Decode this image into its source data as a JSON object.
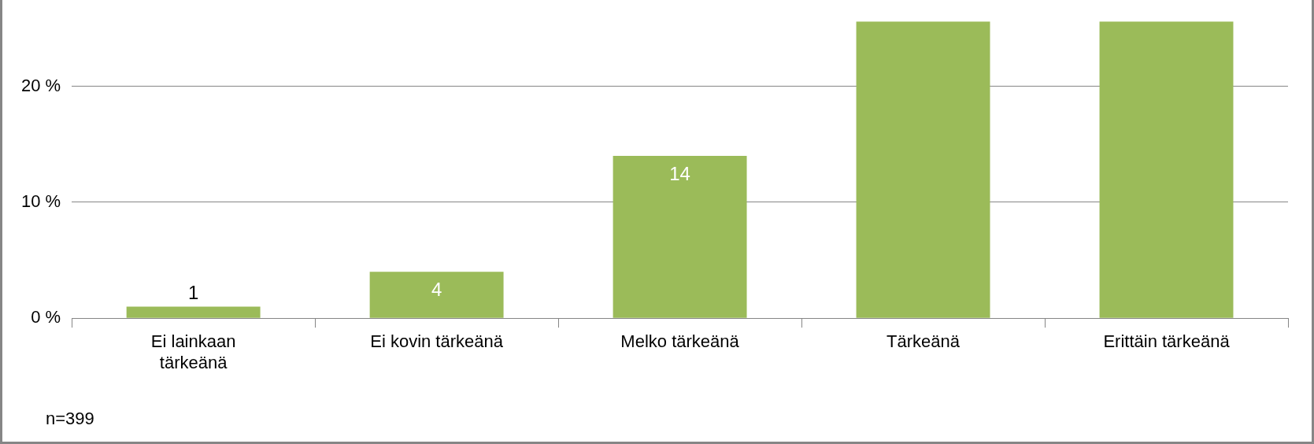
{
  "chart_data": {
    "type": "bar",
    "categories": [
      "Ei lainkaan tärkeänä",
      "Ei kovin tärkeänä",
      "Melko tärkeänä",
      "Tärkeänä",
      "Erittäin tärkeänä"
    ],
    "values": [
      1,
      4,
      14,
      25.6,
      25.6
    ],
    "value_labels": [
      "1",
      "4",
      "14",
      null,
      null
    ],
    "color": "#9bbb59",
    "ylim": [
      0,
      25.6
    ],
    "yticks": [
      {
        "value": 0,
        "label": "0 %"
      },
      {
        "value": 10,
        "label": "10 %"
      },
      {
        "value": 20,
        "label": "20 %"
      }
    ],
    "grid": "y",
    "annotations": [
      "n=399"
    ]
  }
}
